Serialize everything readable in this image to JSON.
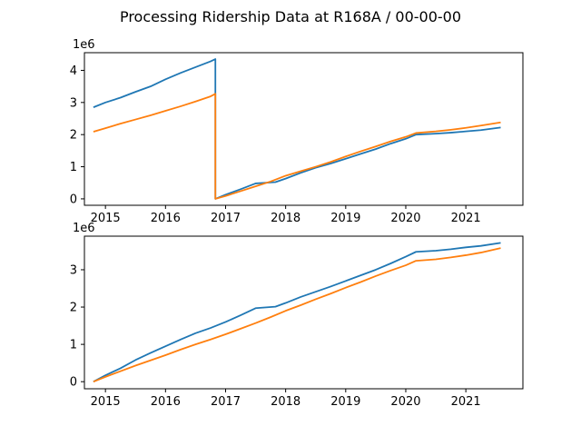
{
  "title": "Processing Ridership Data at R168A / 00-00-00",
  "chart_data": [
    {
      "type": "line",
      "scale_label": "1e6",
      "x_ticks": [
        "2015",
        "2016",
        "2017",
        "2018",
        "2019",
        "2020",
        "2021"
      ],
      "xlim": [
        2014.65,
        2021.95
      ],
      "y_ticks": [
        "0",
        "1",
        "2",
        "3",
        "4"
      ],
      "ylim": [
        -0.2,
        4.55
      ],
      "series": [
        {
          "color": "#1f77b4",
          "points": [
            [
              2014.8,
              2.85
            ],
            [
              2015.0,
              3.0
            ],
            [
              2015.25,
              3.15
            ],
            [
              2015.5,
              3.33
            ],
            [
              2015.75,
              3.5
            ],
            [
              2016.0,
              3.72
            ],
            [
              2016.25,
              3.92
            ],
            [
              2016.5,
              4.1
            ],
            [
              2016.75,
              4.28
            ],
            [
              2016.83,
              4.35
            ],
            [
              2016.83,
              0.0
            ],
            [
              2017.0,
              0.13
            ],
            [
              2017.25,
              0.3
            ],
            [
              2017.5,
              0.48
            ],
            [
              2017.83,
              0.52
            ],
            [
              2018.0,
              0.63
            ],
            [
              2018.25,
              0.81
            ],
            [
              2018.5,
              0.97
            ],
            [
              2018.75,
              1.1
            ],
            [
              2019.0,
              1.25
            ],
            [
              2019.25,
              1.4
            ],
            [
              2019.5,
              1.55
            ],
            [
              2019.75,
              1.72
            ],
            [
              2020.0,
              1.87
            ],
            [
              2020.17,
              2.0
            ],
            [
              2020.5,
              2.03
            ],
            [
              2020.75,
              2.06
            ],
            [
              2021.0,
              2.1
            ],
            [
              2021.25,
              2.14
            ],
            [
              2021.58,
              2.22
            ]
          ]
        },
        {
          "color": "#ff7f0e",
          "points": [
            [
              2014.8,
              2.09
            ],
            [
              2015.0,
              2.2
            ],
            [
              2015.25,
              2.34
            ],
            [
              2015.5,
              2.47
            ],
            [
              2015.75,
              2.6
            ],
            [
              2016.0,
              2.74
            ],
            [
              2016.25,
              2.88
            ],
            [
              2016.5,
              3.03
            ],
            [
              2016.75,
              3.19
            ],
            [
              2016.83,
              3.27
            ],
            [
              2016.83,
              0.0
            ],
            [
              2017.0,
              0.09
            ],
            [
              2017.25,
              0.24
            ],
            [
              2017.5,
              0.39
            ],
            [
              2017.75,
              0.54
            ],
            [
              2018.0,
              0.72
            ],
            [
              2018.25,
              0.86
            ],
            [
              2018.5,
              1.0
            ],
            [
              2018.75,
              1.15
            ],
            [
              2019.0,
              1.32
            ],
            [
              2019.25,
              1.48
            ],
            [
              2019.5,
              1.63
            ],
            [
              2019.75,
              1.79
            ],
            [
              2020.0,
              1.93
            ],
            [
              2020.17,
              2.05
            ],
            [
              2020.5,
              2.1
            ],
            [
              2020.75,
              2.15
            ],
            [
              2021.0,
              2.21
            ],
            [
              2021.25,
              2.28
            ],
            [
              2021.58,
              2.38
            ]
          ]
        }
      ]
    },
    {
      "type": "line",
      "scale_label": "1e6",
      "x_ticks": [
        "2015",
        "2016",
        "2017",
        "2018",
        "2019",
        "2020",
        "2021"
      ],
      "xlim": [
        2014.65,
        2021.95
      ],
      "y_ticks": [
        "0",
        "1",
        "2",
        "3"
      ],
      "ylim": [
        -0.19,
        3.9
      ],
      "series": [
        {
          "color": "#1f77b4",
          "points": [
            [
              2014.8,
              0.0
            ],
            [
              2015.0,
              0.17
            ],
            [
              2015.25,
              0.36
            ],
            [
              2015.5,
              0.58
            ],
            [
              2015.75,
              0.77
            ],
            [
              2016.0,
              0.95
            ],
            [
              2016.25,
              1.13
            ],
            [
              2016.5,
              1.3
            ],
            [
              2016.75,
              1.44
            ],
            [
              2017.0,
              1.6
            ],
            [
              2017.25,
              1.78
            ],
            [
              2017.5,
              1.97
            ],
            [
              2017.83,
              2.01
            ],
            [
              2018.0,
              2.11
            ],
            [
              2018.25,
              2.27
            ],
            [
              2018.5,
              2.41
            ],
            [
              2018.75,
              2.55
            ],
            [
              2019.0,
              2.7
            ],
            [
              2019.25,
              2.85
            ],
            [
              2019.5,
              3.0
            ],
            [
              2019.75,
              3.17
            ],
            [
              2020.0,
              3.35
            ],
            [
              2020.17,
              3.48
            ],
            [
              2020.5,
              3.51
            ],
            [
              2020.75,
              3.55
            ],
            [
              2021.0,
              3.6
            ],
            [
              2021.25,
              3.64
            ],
            [
              2021.58,
              3.72
            ]
          ]
        },
        {
          "color": "#ff7f0e",
          "points": [
            [
              2014.8,
              0.0
            ],
            [
              2015.0,
              0.13
            ],
            [
              2015.25,
              0.28
            ],
            [
              2015.5,
              0.43
            ],
            [
              2015.75,
              0.57
            ],
            [
              2016.0,
              0.71
            ],
            [
              2016.25,
              0.86
            ],
            [
              2016.5,
              1.0
            ],
            [
              2016.75,
              1.13
            ],
            [
              2017.0,
              1.27
            ],
            [
              2017.25,
              1.42
            ],
            [
              2017.5,
              1.57
            ],
            [
              2017.75,
              1.73
            ],
            [
              2018.0,
              1.9
            ],
            [
              2018.25,
              2.05
            ],
            [
              2018.5,
              2.21
            ],
            [
              2018.75,
              2.36
            ],
            [
              2019.0,
              2.52
            ],
            [
              2019.25,
              2.67
            ],
            [
              2019.5,
              2.83
            ],
            [
              2019.75,
              2.98
            ],
            [
              2020.0,
              3.12
            ],
            [
              2020.17,
              3.24
            ],
            [
              2020.5,
              3.28
            ],
            [
              2020.75,
              3.33
            ],
            [
              2021.0,
              3.39
            ],
            [
              2021.25,
              3.46
            ],
            [
              2021.58,
              3.58
            ]
          ]
        }
      ]
    }
  ]
}
